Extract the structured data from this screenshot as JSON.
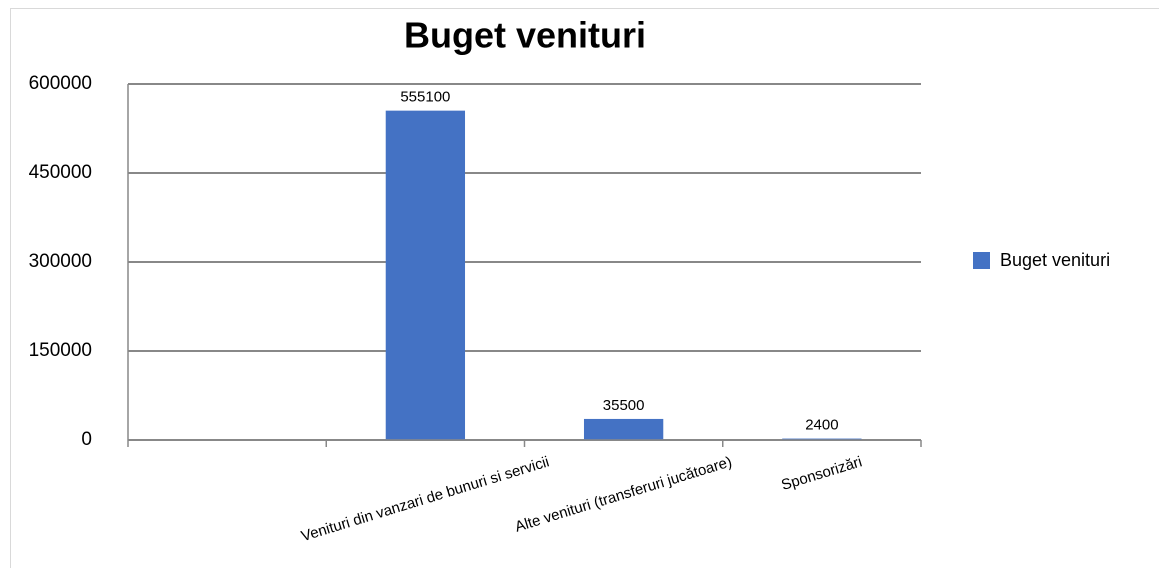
{
  "chart_data": {
    "type": "bar",
    "title": "Buget venituri",
    "categories": [
      null,
      "Venituri din vanzari de bunuri si servicii",
      "Alte venituri (transferuri jucătoare)",
      "Sponsorizări"
    ],
    "series": [
      {
        "name": "Buget venituri",
        "color": "#4472c4",
        "values": [
          null,
          555100,
          35500,
          2400
        ]
      }
    ],
    "ylim": [
      0,
      600000
    ],
    "yticks": [
      0,
      150000,
      300000,
      450000,
      600000
    ],
    "grid": true,
    "legend": "right"
  }
}
